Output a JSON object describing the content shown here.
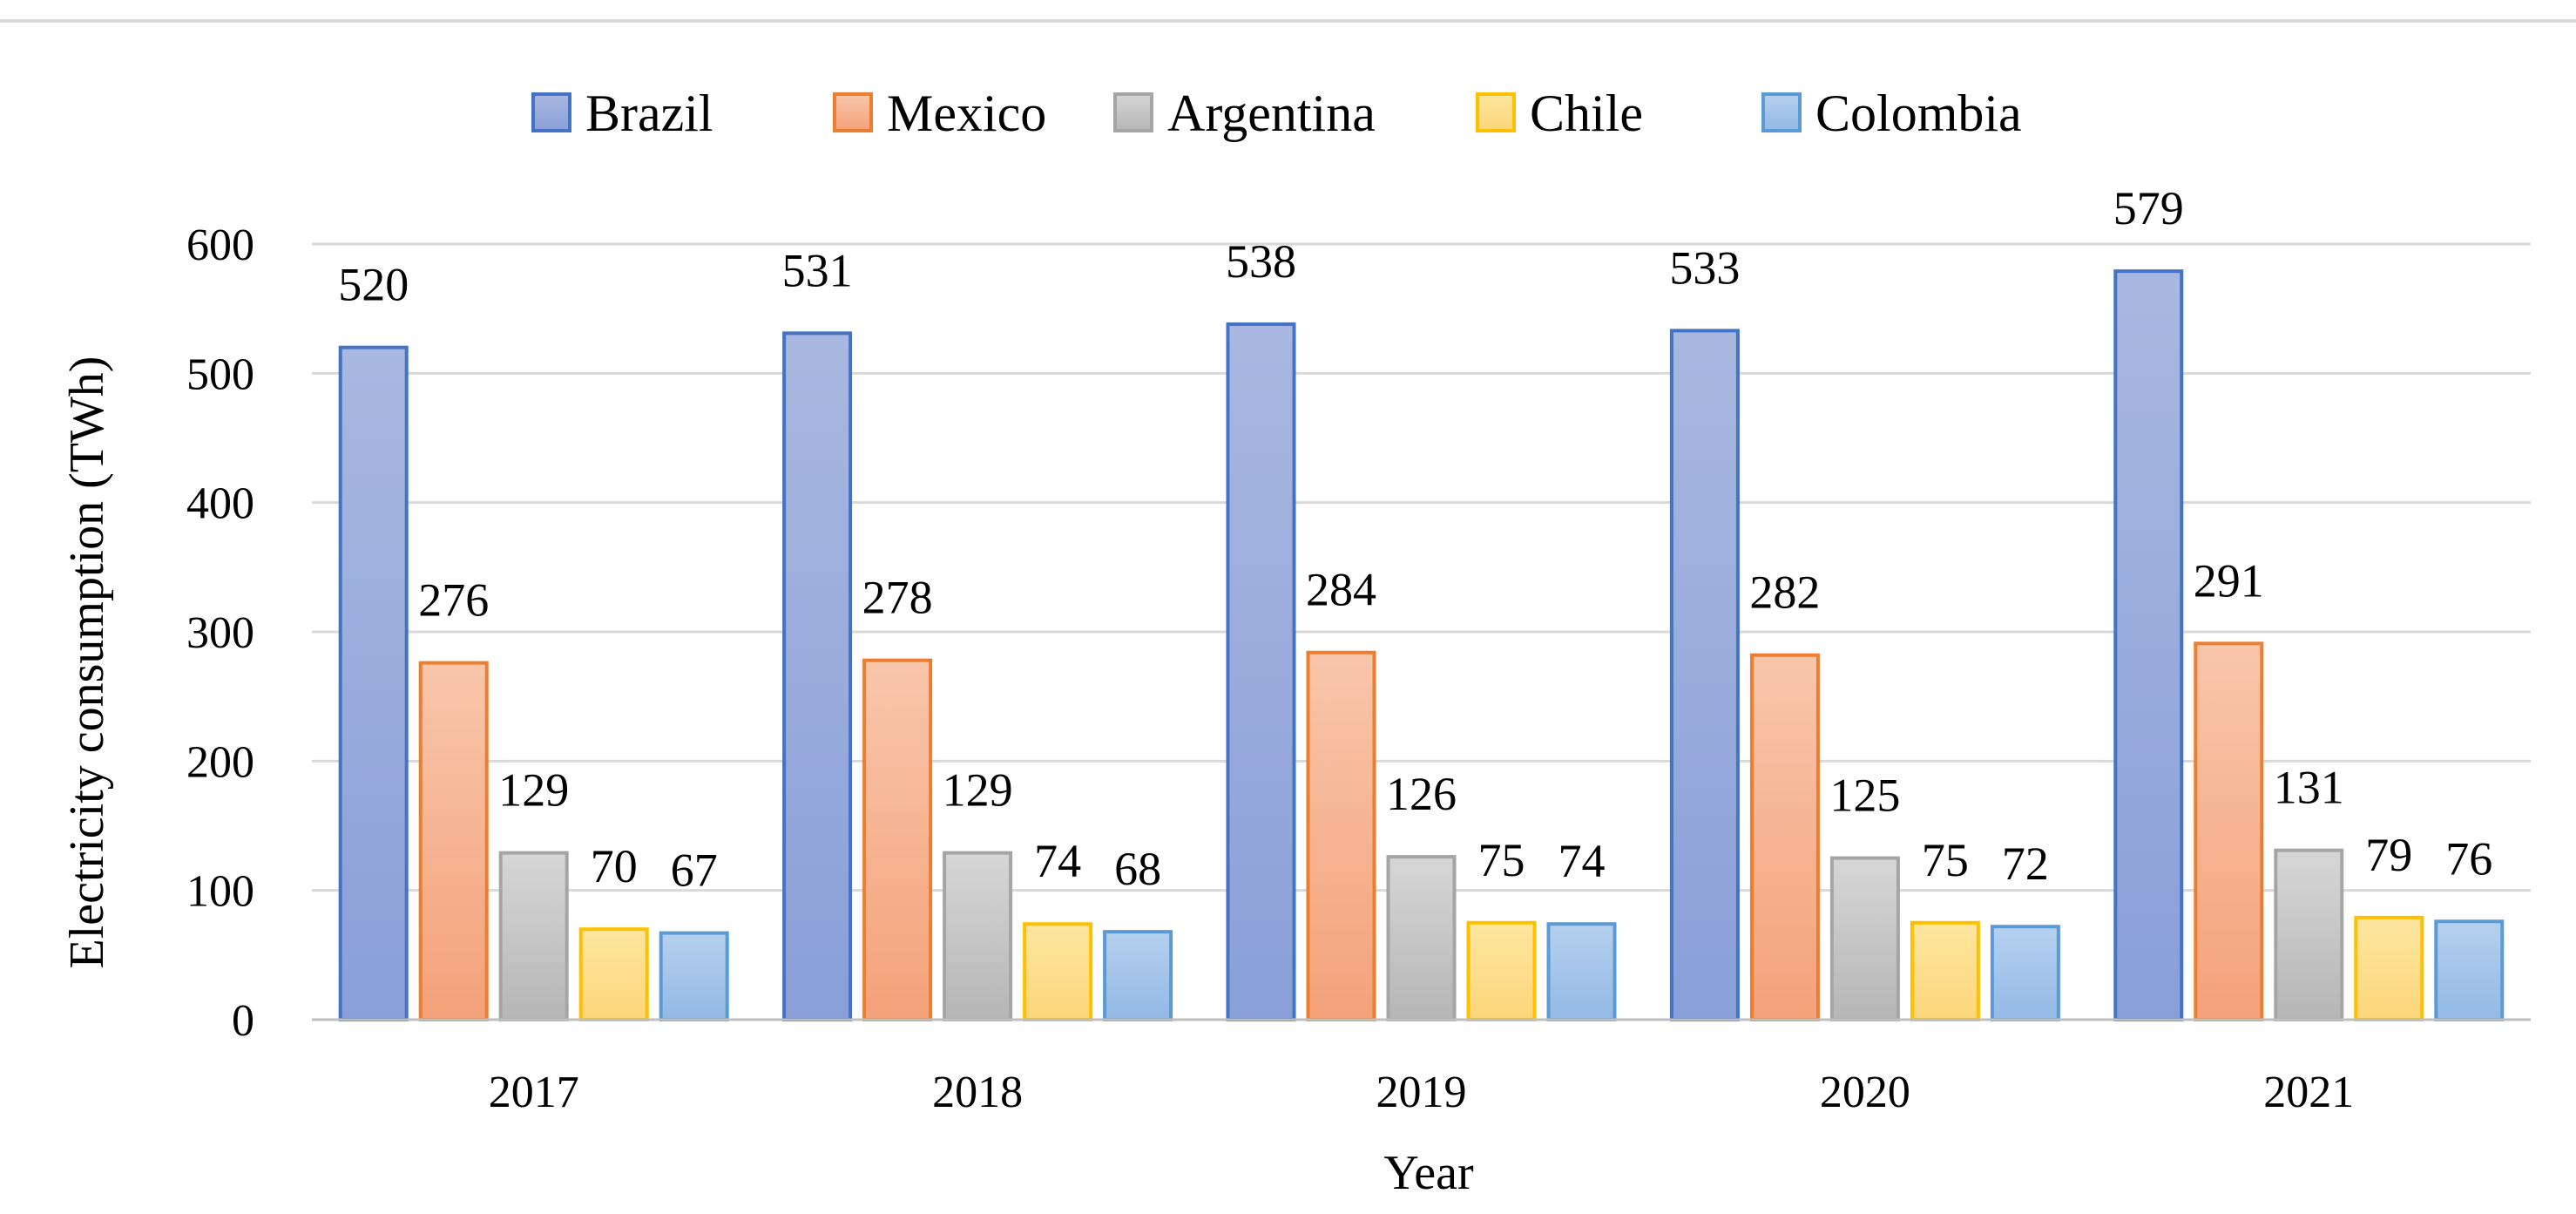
{
  "chart_data": {
    "type": "bar",
    "title": "",
    "xlabel": "Year",
    "ylabel": "Electricity consumption (TWh)",
    "ylim": [
      0,
      600
    ],
    "yticks": [
      0,
      100,
      200,
      300,
      400,
      500,
      600
    ],
    "grid": true,
    "legend_position": "top",
    "categories": [
      "2017",
      "2018",
      "2019",
      "2020",
      "2021"
    ],
    "series": [
      {
        "name": "Brazil",
        "values": [
          520,
          531,
          538,
          533,
          579
        ],
        "color_top": "#a9b8e0",
        "color_bottom": "#8a9fd8",
        "border": "#4472c4"
      },
      {
        "name": "Mexico",
        "values": [
          276,
          278,
          284,
          282,
          291
        ],
        "color_top": "#f8c6ab",
        "color_bottom": "#f4a27a",
        "border": "#ed7d31"
      },
      {
        "name": "Argentina",
        "values": [
          129,
          129,
          126,
          125,
          131
        ],
        "color_top": "#d6d6d6",
        "color_bottom": "#b6b6b6",
        "border": "#a5a5a5"
      },
      {
        "name": "Chile",
        "values": [
          70,
          74,
          75,
          75,
          79
        ],
        "color_top": "#fde6a0",
        "color_bottom": "#fdd67a",
        "border": "#ffc000"
      },
      {
        "name": "Colombia",
        "values": [
          67,
          68,
          74,
          72,
          76
        ],
        "color_top": "#b6d0ee",
        "color_bottom": "#93b9e5",
        "border": "#5b9bd5"
      }
    ]
  }
}
